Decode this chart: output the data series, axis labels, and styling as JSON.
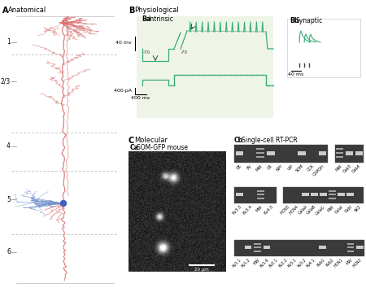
{
  "background_color": "#ffffff",
  "neuron_dendrite_color": "#d97070",
  "neuron_axon_color": "#7090cc",
  "neuron_soma_color": "#4060c0",
  "trace_color": "#3aaa7a",
  "trace_bg": "#eef5e8",
  "rtpcr_row1_labels": [
    "CB",
    "PV",
    "MW",
    "CR",
    "NPY",
    "VIP",
    "SOM",
    "CCK",
    "GAPDH"
  ],
  "rtpcr_row1_bands": [
    1,
    0,
    0,
    1,
    0,
    0,
    1,
    0,
    1
  ],
  "rtpcr_row1b_labels": [
    "MW",
    "Cab3",
    "Cab4"
  ],
  "rtpcr_row1b_bands": [
    0,
    1,
    1
  ],
  "rtpcr_row2a_labels": [
    "Kv3.3",
    "Kv3.4",
    "MW",
    "Kv4.3"
  ],
  "rtpcr_row2a_bands": [
    1,
    0,
    0,
    0
  ],
  "rtpcr_row2b_labels": [
    "HCN3",
    "HCN4",
    "CaIaA",
    "CaIaB",
    "CaIaG",
    "MW",
    "CaIaI",
    "CabI",
    "SK2"
  ],
  "rtpcr_row2b_bands": [
    0,
    0,
    1,
    1,
    1,
    0,
    1,
    1,
    0
  ],
  "rtpcr_row3_labels": [
    "Kv1.1",
    "Kv1.2",
    "MW",
    "Kv1.6",
    "Kv2.1",
    "Kv2.2",
    "Kv3.1",
    "Kv3.2",
    "Kv4.1",
    "Kvb1",
    "Kvb2",
    "HCN1",
    "MW",
    "HCN2"
  ],
  "rtpcr_row3_bands": [
    0,
    1,
    0,
    1,
    0,
    0,
    0,
    0,
    0,
    1,
    0,
    0,
    0,
    1
  ],
  "scale_bar_um": "20 μm"
}
